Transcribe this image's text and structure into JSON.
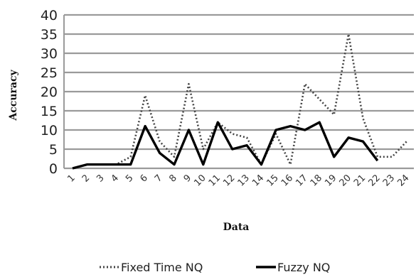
{
  "chart_data": {
    "type": "line",
    "title": "",
    "xlabel": "Data",
    "ylabel": "Accuracy",
    "ylim": [
      0,
      40
    ],
    "yticks": [
      "0",
      "5",
      "10",
      "15",
      "20",
      "25",
      "30",
      "35",
      "40"
    ],
    "categories": [
      "1",
      "2",
      "3",
      "4",
      "5",
      "6",
      "7",
      "8",
      "9",
      "10",
      "11",
      "12",
      "13",
      "14",
      "15",
      "16",
      "17",
      "18",
      "19",
      "20",
      "21",
      "22",
      "23",
      "24"
    ],
    "grid": true,
    "legend_position": "bottom",
    "series": [
      {
        "name": "Fixed Time NQ",
        "style": "dotted",
        "color": "#444444",
        "values": [
          0,
          1,
          1,
          1,
          3,
          19,
          7,
          3,
          22,
          5,
          12,
          9,
          8,
          1,
          9,
          1,
          22,
          18,
          14,
          35,
          13,
          3,
          3,
          7
        ]
      },
      {
        "name": "Fuzzy NQ",
        "style": "solid",
        "color": "#000000",
        "values": [
          0,
          1,
          1,
          1,
          1,
          11,
          4,
          1,
          10,
          1,
          12,
          5,
          6,
          1,
          10,
          11,
          10,
          12,
          3,
          8,
          7,
          2,
          null,
          null
        ]
      }
    ]
  }
}
